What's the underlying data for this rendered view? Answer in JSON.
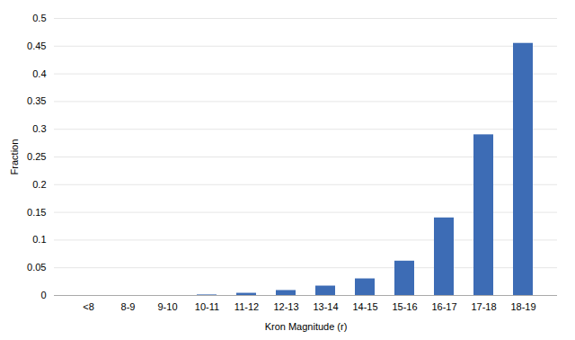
{
  "chart_data": {
    "type": "bar",
    "categories": [
      "<8",
      "8-9",
      "9-10",
      "10-11",
      "11-12",
      "12-13",
      "13-14",
      "14-15",
      "15-16",
      "16-17",
      "17-18",
      "18-19"
    ],
    "values": [
      0.0,
      0.0,
      0.0,
      0.001,
      0.004,
      0.009,
      0.017,
      0.03,
      0.062,
      0.14,
      0.29,
      0.455
    ],
    "color": "#3d6cb5",
    "xlabel": "Kron Magnitude (r)",
    "ylabel": "Fraction",
    "ylim": [
      0,
      0.5
    ],
    "yticks": [
      0,
      0.05,
      0.1,
      0.15,
      0.2,
      0.25,
      0.3,
      0.35,
      0.4,
      0.45,
      0.5
    ],
    "grid": true
  }
}
